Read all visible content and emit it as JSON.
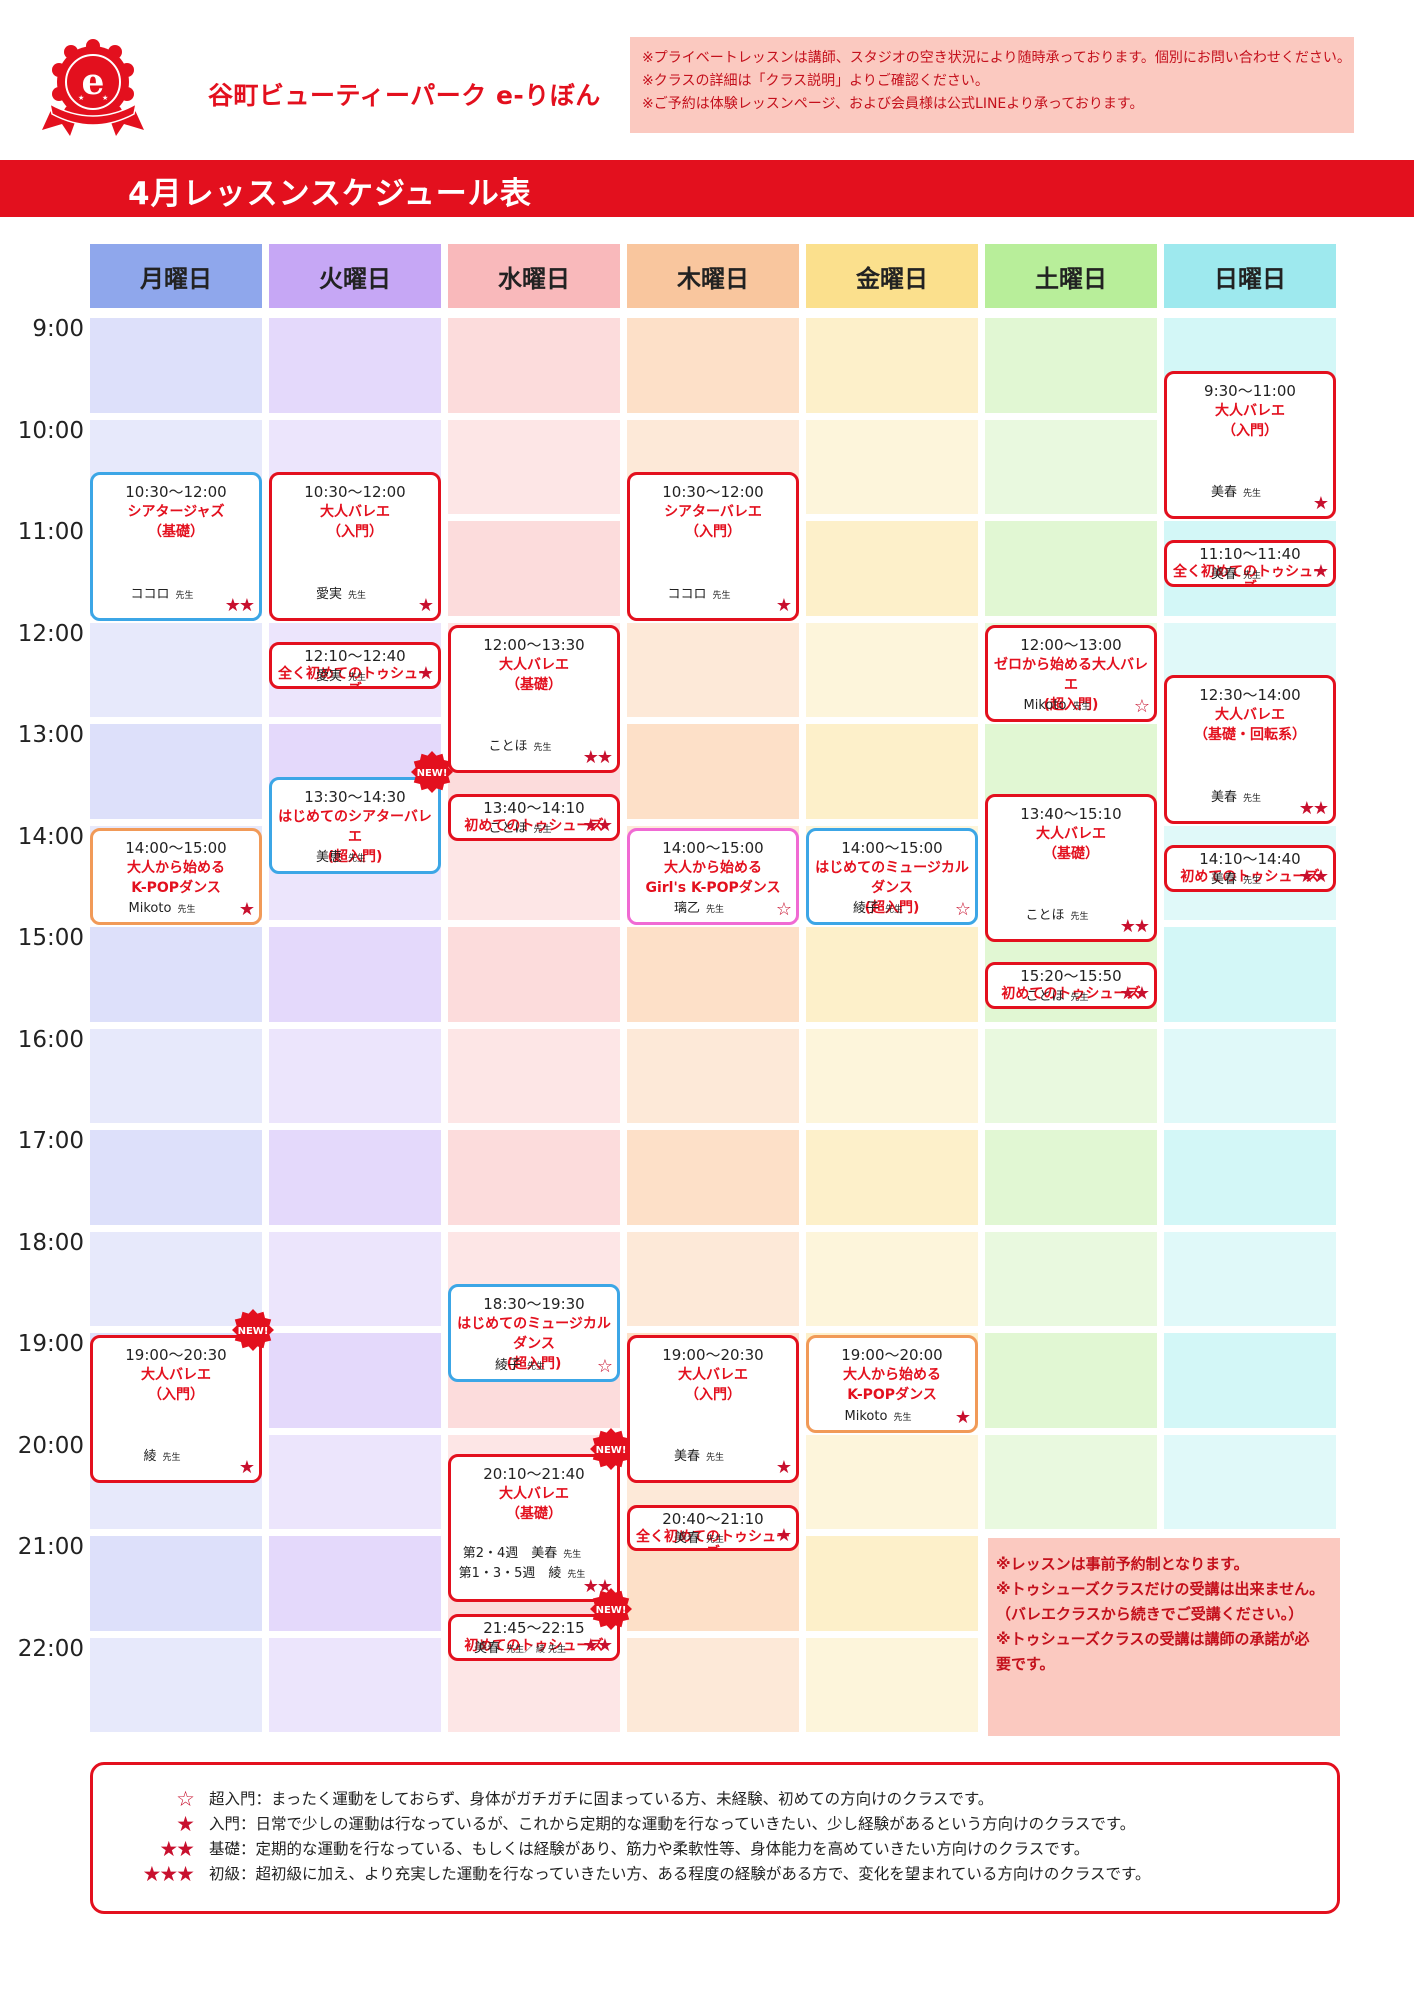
{
  "header": {
    "brand": "谷町ビューティーパーク e-りぼん",
    "notices": [
      "※プライベートレッスンは講師、スタジオの空き状況により随時承っております。個別にお問い合わせください。",
      "※クラスの詳細は「クラス説明」よりご確認ください。",
      "※ご予約は体験レッスンページ、および会員様は公式LINEより承っております。"
    ],
    "title": "4月レッスンスケジュール表",
    "logo_letter": "e"
  },
  "days": [
    {
      "label": "月曜日",
      "head": "#8fa7ec",
      "bg": [
        "#dde0fa",
        "#e7e9fb"
      ]
    },
    {
      "label": "火曜日",
      "head": "#c6a7f5",
      "bg": [
        "#e4d9fb",
        "#ece5fc"
      ]
    },
    {
      "label": "水曜日",
      "head": "#f9b9bb",
      "bg": [
        "#fcdcdc",
        "#fde6e6"
      ]
    },
    {
      "label": "木曜日",
      "head": "#f9c69e",
      "bg": [
        "#fde0c8",
        "#fde9d8"
      ]
    },
    {
      "label": "金曜日",
      "head": "#fbe08d",
      "bg": [
        "#fdf0ca",
        "#fdf5db"
      ]
    },
    {
      "label": "土曜日",
      "head": "#b8ee9a",
      "bg": [
        "#e1f7d3",
        "#e9f9df"
      ]
    },
    {
      "label": "日曜日",
      "head": "#9ee9ee",
      "bg": [
        "#d3f7f7",
        "#e0f9f9"
      ]
    }
  ],
  "times": [
    "9:00",
    "10:00",
    "11:00",
    "12:00",
    "13:00",
    "14:00",
    "15:00",
    "16:00",
    "17:00",
    "18:00",
    "19:00",
    "20:00",
    "21:00",
    "22:00"
  ],
  "lessons": [
    {
      "day": 0,
      "start": 10.5,
      "end": 12.0,
      "time": "10:30～12:00",
      "name": [
        "シアタージャズ",
        "（基礎）"
      ],
      "teacher": "ココロ",
      "title": "先生",
      "stars": "★★",
      "color": "blue"
    },
    {
      "day": 0,
      "start": 14.0,
      "end": 15.0,
      "time": "14:00～15:00",
      "name": [
        "大人から始める",
        "K-POPダンス"
      ],
      "teacher": "Mikoto",
      "title": "先生",
      "stars": "★",
      "color": "orange"
    },
    {
      "day": 0,
      "start": 19.0,
      "end": 20.5,
      "time": "19:00～20:30",
      "name": [
        "大人バレエ",
        "（入門）"
      ],
      "teacher": "綾",
      "title": "先生",
      "stars": "★",
      "color": "red",
      "new": true
    },
    {
      "day": 1,
      "start": 10.5,
      "end": 12.0,
      "time": "10:30～12:00",
      "name": [
        "大人バレエ",
        "（入門）"
      ],
      "teacher": "愛実",
      "title": "先生",
      "stars": "★",
      "color": "red"
    },
    {
      "day": 1,
      "start": 12.17,
      "end": 12.67,
      "time": "12:10～12:40",
      "name": [
        "全く初めてのトゥシューズ"
      ],
      "teacher": "愛実",
      "title": "先生",
      "stars": "★",
      "color": "red",
      "compact": true
    },
    {
      "day": 1,
      "start": 13.5,
      "end": 14.5,
      "time": "13:30～14:30",
      "name": [
        "はじめてのシアターバレエ",
        "(超入門)"
      ],
      "teacher": "美恵",
      "title": "先生",
      "stars": "",
      "color": "blue",
      "new": true
    },
    {
      "day": 2,
      "start": 12.0,
      "end": 13.5,
      "time": "12:00～13:30",
      "name": [
        "大人バレエ",
        "（基礎）"
      ],
      "teacher": "ことほ",
      "title": "先生",
      "stars": "★★",
      "color": "red"
    },
    {
      "day": 2,
      "start": 13.67,
      "end": 14.17,
      "time": "13:40～14:10",
      "name": [
        "初めてのトゥシューズ"
      ],
      "teacher": "ことほ",
      "title": "先生",
      "stars": "★★",
      "color": "red",
      "compact": true
    },
    {
      "day": 2,
      "start": 18.5,
      "end": 19.5,
      "time": "18:30～19:30",
      "name": [
        "はじめてのミュージカルダンス",
        "(超入門)"
      ],
      "teacher": "綾子",
      "title": "先生",
      "stars": "☆",
      "color": "blue"
    },
    {
      "day": 2,
      "start": 20.17,
      "end": 21.67,
      "time": "20:10～21:40",
      "name": [
        "大人バレエ",
        "（基礎）"
      ],
      "teacher_lines": [
        {
          "week": "第2・4週",
          "name": "美春",
          "title": "先生"
        },
        {
          "week": "第1・3・5週",
          "name": "綾",
          "title": "先生"
        }
      ],
      "stars": "★★",
      "color": "red",
      "new": true
    },
    {
      "day": 2,
      "start": 21.75,
      "end": 22.25,
      "time": "21:45～22:15",
      "name": [
        "初めてのトゥシューズ"
      ],
      "teacher": "美春",
      "title": "先生／ 綾 先生",
      "stars": "★★",
      "color": "red",
      "compact": true,
      "new": true
    },
    {
      "day": 3,
      "start": 10.5,
      "end": 12.0,
      "time": "10:30～12:00",
      "name": [
        "シアターバレエ",
        "（入門）"
      ],
      "teacher": "ココロ",
      "title": "先生",
      "stars": "★",
      "color": "red"
    },
    {
      "day": 3,
      "start": 14.0,
      "end": 15.0,
      "time": "14:00～15:00",
      "name": [
        "大人から始める",
        "Girl's K-POPダンス"
      ],
      "teacher": "璃乙",
      "title": "先生",
      "stars": "☆",
      "color": "pink"
    },
    {
      "day": 3,
      "start": 19.0,
      "end": 20.5,
      "time": "19:00～20:30",
      "name": [
        "大人バレエ",
        "（入門）"
      ],
      "teacher": "美春",
      "title": "先生",
      "stars": "★",
      "color": "red"
    },
    {
      "day": 3,
      "start": 20.67,
      "end": 21.17,
      "time": "20:40～21:10",
      "name": [
        "全く初めてのトゥシューズ"
      ],
      "teacher": "美春",
      "title": "先生",
      "stars": "★",
      "color": "red",
      "compact": true
    },
    {
      "day": 4,
      "start": 14.0,
      "end": 15.0,
      "time": "14:00～15:00",
      "name": [
        "はじめてのミュージカルダンス",
        "(超入門)"
      ],
      "teacher": "綾子",
      "title": "先生",
      "stars": "☆",
      "color": "blue"
    },
    {
      "day": 4,
      "start": 19.0,
      "end": 20.0,
      "time": "19:00～20:00",
      "name": [
        "大人から始める",
        "K-POPダンス"
      ],
      "teacher": "Mikoto",
      "title": "先生",
      "stars": "★",
      "color": "orange"
    },
    {
      "day": 5,
      "start": 12.0,
      "end": 13.0,
      "time": "12:00～13:00",
      "name": [
        "ゼロから始める大人バレエ",
        "(超入門)"
      ],
      "teacher": "Mikoto",
      "title": "先生",
      "stars": "☆",
      "color": "red"
    },
    {
      "day": 5,
      "start": 13.67,
      "end": 15.17,
      "time": "13:40～15:10",
      "name": [
        "大人バレエ",
        "（基礎）"
      ],
      "teacher": "ことほ",
      "title": "先生",
      "stars": "★★",
      "color": "red"
    },
    {
      "day": 5,
      "start": 15.33,
      "end": 15.83,
      "time": "15:20～15:50",
      "name": [
        "初めてのトゥシューズ"
      ],
      "teacher": "ことほ",
      "title": "先生",
      "stars": "★★",
      "color": "red",
      "compact": true
    },
    {
      "day": 6,
      "start": 9.5,
      "end": 11.0,
      "time": "9:30～11:00",
      "name": [
        "大人バレエ",
        "（入門）"
      ],
      "teacher": "美春",
      "title": "先生",
      "stars": "★",
      "color": "red"
    },
    {
      "day": 6,
      "start": 11.17,
      "end": 11.67,
      "time": "11:10～11:40",
      "name": [
        "全く初めてのトゥシューズ"
      ],
      "teacher": "美春",
      "title": "先生",
      "stars": "★",
      "color": "red",
      "compact": true
    },
    {
      "day": 6,
      "start": 12.5,
      "end": 14.0,
      "time": "12:30～14:00",
      "name": [
        "大人バレエ",
        "（基礎・回転系）"
      ],
      "teacher": "美春",
      "title": "先生",
      "stars": "★★",
      "color": "red"
    },
    {
      "day": 6,
      "start": 14.17,
      "end": 14.67,
      "time": "14:10～14:40",
      "name": [
        "初めてのトゥシューズ"
      ],
      "teacher": "美春",
      "title": "先生",
      "stars": "★★",
      "color": "red",
      "compact": true
    }
  ],
  "new_label": "NEW!",
  "right_notes": [
    "※レッスンは事前予約制となります。",
    "※トゥシューズクラスだけの受講は出来ません。",
    "（バレエクラスから続きでご受講ください。）",
    "※トゥシューズクラスの受講は講師の承諾が必",
    "要です。"
  ],
  "legend": [
    {
      "symbol": "☆",
      "text": "超入門：まったく運動をしておらず、身体がガチガチに固まっている方、未経験、初めての方向けのクラスです。"
    },
    {
      "symbol": "★",
      "text": "入門：日常で少しの運動は行なっているが、これから定期的な運動を行なっていきたい、少し経験があるという方向けのクラスです。"
    },
    {
      "symbol": "★★",
      "text": "基礎：定期的な運動を行なっている、もしくは経験があり、筋力や柔軟性等、身体能力を高めていきたい方向けのクラスです。"
    },
    {
      "symbol": "★★★",
      "text": "初級：超初級に加え、より充実した運動を行なっていきたい方、ある程度の経験がある方で、変化を望まれている方向けのクラスです。"
    }
  ],
  "colors": {
    "accent": "#e3101e",
    "star": "#c8102e",
    "notice_bg": "#fbc9c0"
  }
}
